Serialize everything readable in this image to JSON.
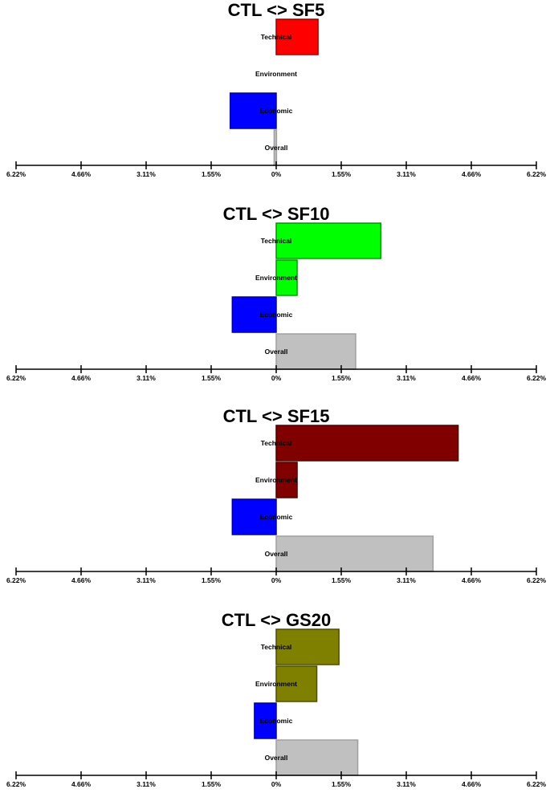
{
  "chart_data": [
    {
      "type": "bar",
      "orientation": "horizontal",
      "title": "CTL <> SF5",
      "categories": [
        "Technical",
        "Environment",
        "Economic",
        "Overall"
      ],
      "values": [
        1.0,
        0.0,
        -1.1,
        -0.05
      ],
      "colors": [
        "#ff0000",
        "#ffffff",
        "#0000ff",
        "#c0c0c0"
      ],
      "xlim": [
        -6.22,
        6.22
      ],
      "ticks": [
        "6.22%",
        "4.66%",
        "3.11%",
        "1.55%",
        "0%",
        "1.55%",
        "3.11%",
        "4.66%",
        "6.22%"
      ]
    },
    {
      "type": "bar",
      "orientation": "horizontal",
      "title": "CTL <> SF10",
      "categories": [
        "Technical",
        "Environment",
        "Economic",
        "Overall"
      ],
      "values": [
        2.5,
        0.5,
        -1.05,
        1.9
      ],
      "colors": [
        "#00ff00",
        "#00ff00",
        "#0000ff",
        "#c0c0c0"
      ],
      "xlim": [
        -6.22,
        6.22
      ],
      "ticks": [
        "6.22%",
        "4.66%",
        "3.11%",
        "1.55%",
        "0%",
        "1.55%",
        "3.11%",
        "4.66%",
        "6.22%"
      ]
    },
    {
      "type": "bar",
      "orientation": "horizontal",
      "title": "CTL <> SF15",
      "categories": [
        "Technical",
        "Environment",
        "Economic",
        "Overall"
      ],
      "values": [
        4.35,
        0.5,
        -1.05,
        3.75
      ],
      "colors": [
        "#800000",
        "#800000",
        "#0000ff",
        "#c0c0c0"
      ],
      "xlim": [
        -6.22,
        6.22
      ],
      "ticks": [
        "6.22%",
        "4.66%",
        "3.11%",
        "1.55%",
        "0%",
        "1.55%",
        "3.11%",
        "4.66%",
        "6.22%"
      ]
    },
    {
      "type": "bar",
      "orientation": "horizontal",
      "title": "CTL <> GS20",
      "categories": [
        "Technical",
        "Environment",
        "Economic",
        "Overall"
      ],
      "values": [
        1.5,
        0.97,
        -0.52,
        1.95
      ],
      "colors": [
        "#808000",
        "#808000",
        "#0000ff",
        "#c0c0c0"
      ],
      "xlim": [
        -6.22,
        6.22
      ],
      "ticks": [
        "6.22%",
        "4.66%",
        "3.11%",
        "1.55%",
        "0%",
        "1.55%",
        "3.11%",
        "4.66%",
        "6.22%"
      ]
    }
  ]
}
